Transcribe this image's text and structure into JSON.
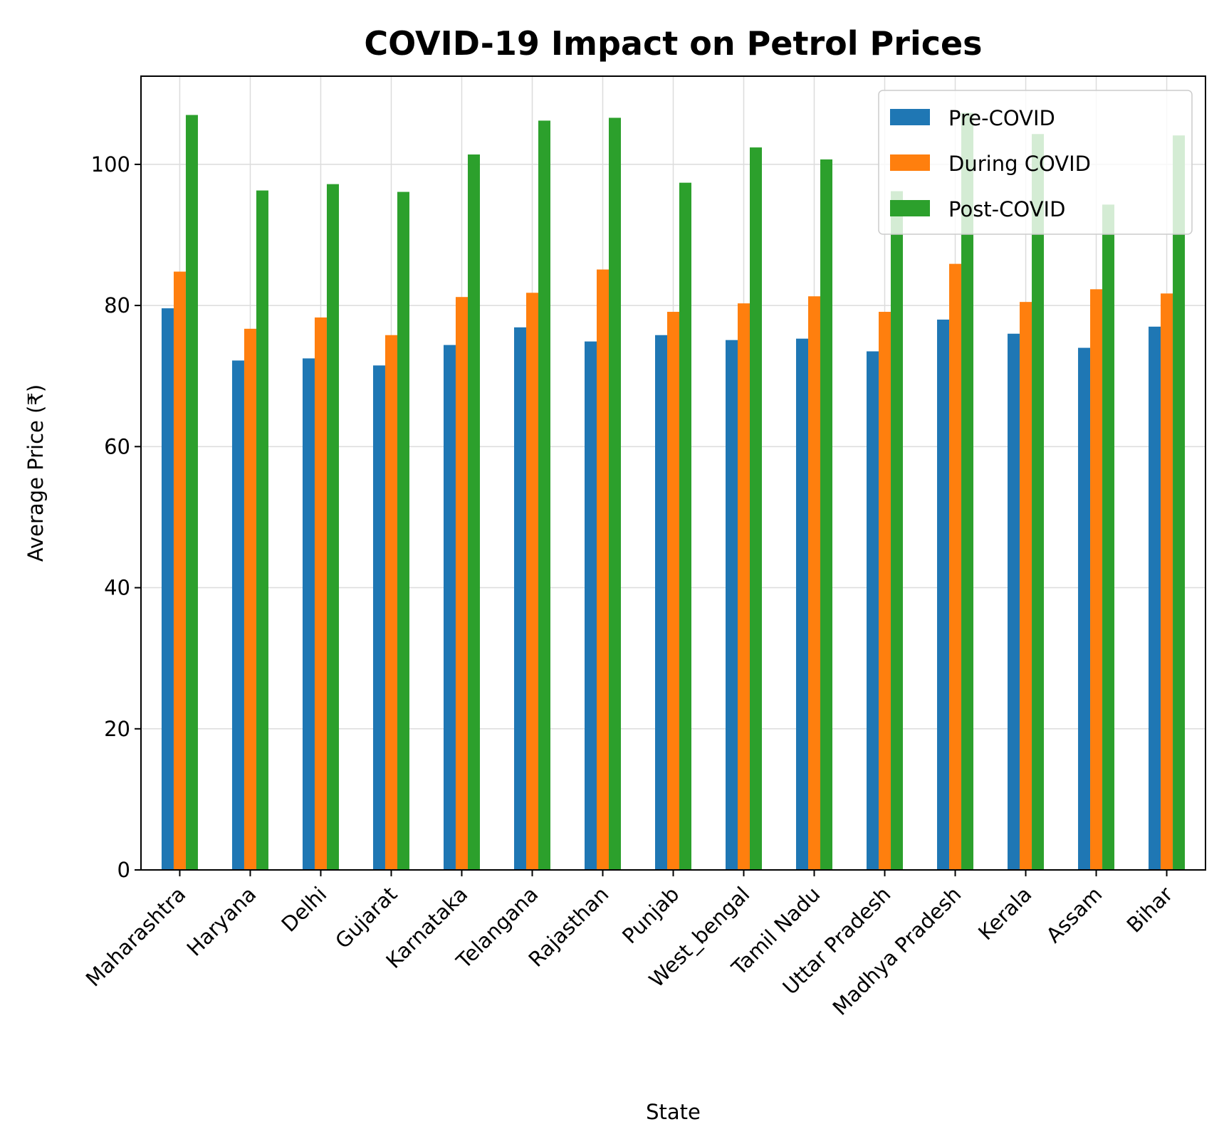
{
  "chart_data": {
    "type": "bar",
    "title": "COVID-19 Impact on Petrol Prices",
    "xlabel": "State",
    "ylabel": "Average Price (₹)",
    "ylim": [
      0,
      112.5
    ],
    "yticks": [
      0,
      20,
      40,
      60,
      80,
      100
    ],
    "grid": true,
    "legend_position": "top-right",
    "categories": [
      "Maharashtra",
      "Haryana",
      "Delhi",
      "Gujarat",
      "Karnataka",
      "Telangana",
      "Rajasthan",
      "Punjab",
      "West_bengal",
      "Tamil Nadu",
      "Uttar Pradesh",
      "Madhya Pradesh",
      "Kerala",
      "Assam",
      "Bihar"
    ],
    "series": [
      {
        "name": "Pre-COVID",
        "color": "#1f77b4",
        "values": [
          79.6,
          72.2,
          72.5,
          71.5,
          74.4,
          76.9,
          74.9,
          75.8,
          75.1,
          75.3,
          73.5,
          78.0,
          76.0,
          74.0,
          77.0
        ]
      },
      {
        "name": "During COVID",
        "color": "#ff7f0e",
        "values": [
          84.8,
          76.7,
          78.3,
          75.8,
          81.2,
          81.8,
          85.1,
          79.1,
          80.3,
          81.3,
          79.1,
          85.9,
          80.5,
          82.3,
          81.7
        ]
      },
      {
        "name": "Post-COVID",
        "color": "#2ca02c",
        "values": [
          107.0,
          96.3,
          97.2,
          96.1,
          101.4,
          106.2,
          106.6,
          97.4,
          102.4,
          100.7,
          96.2,
          107.3,
          104.3,
          94.3,
          104.1
        ]
      }
    ]
  }
}
